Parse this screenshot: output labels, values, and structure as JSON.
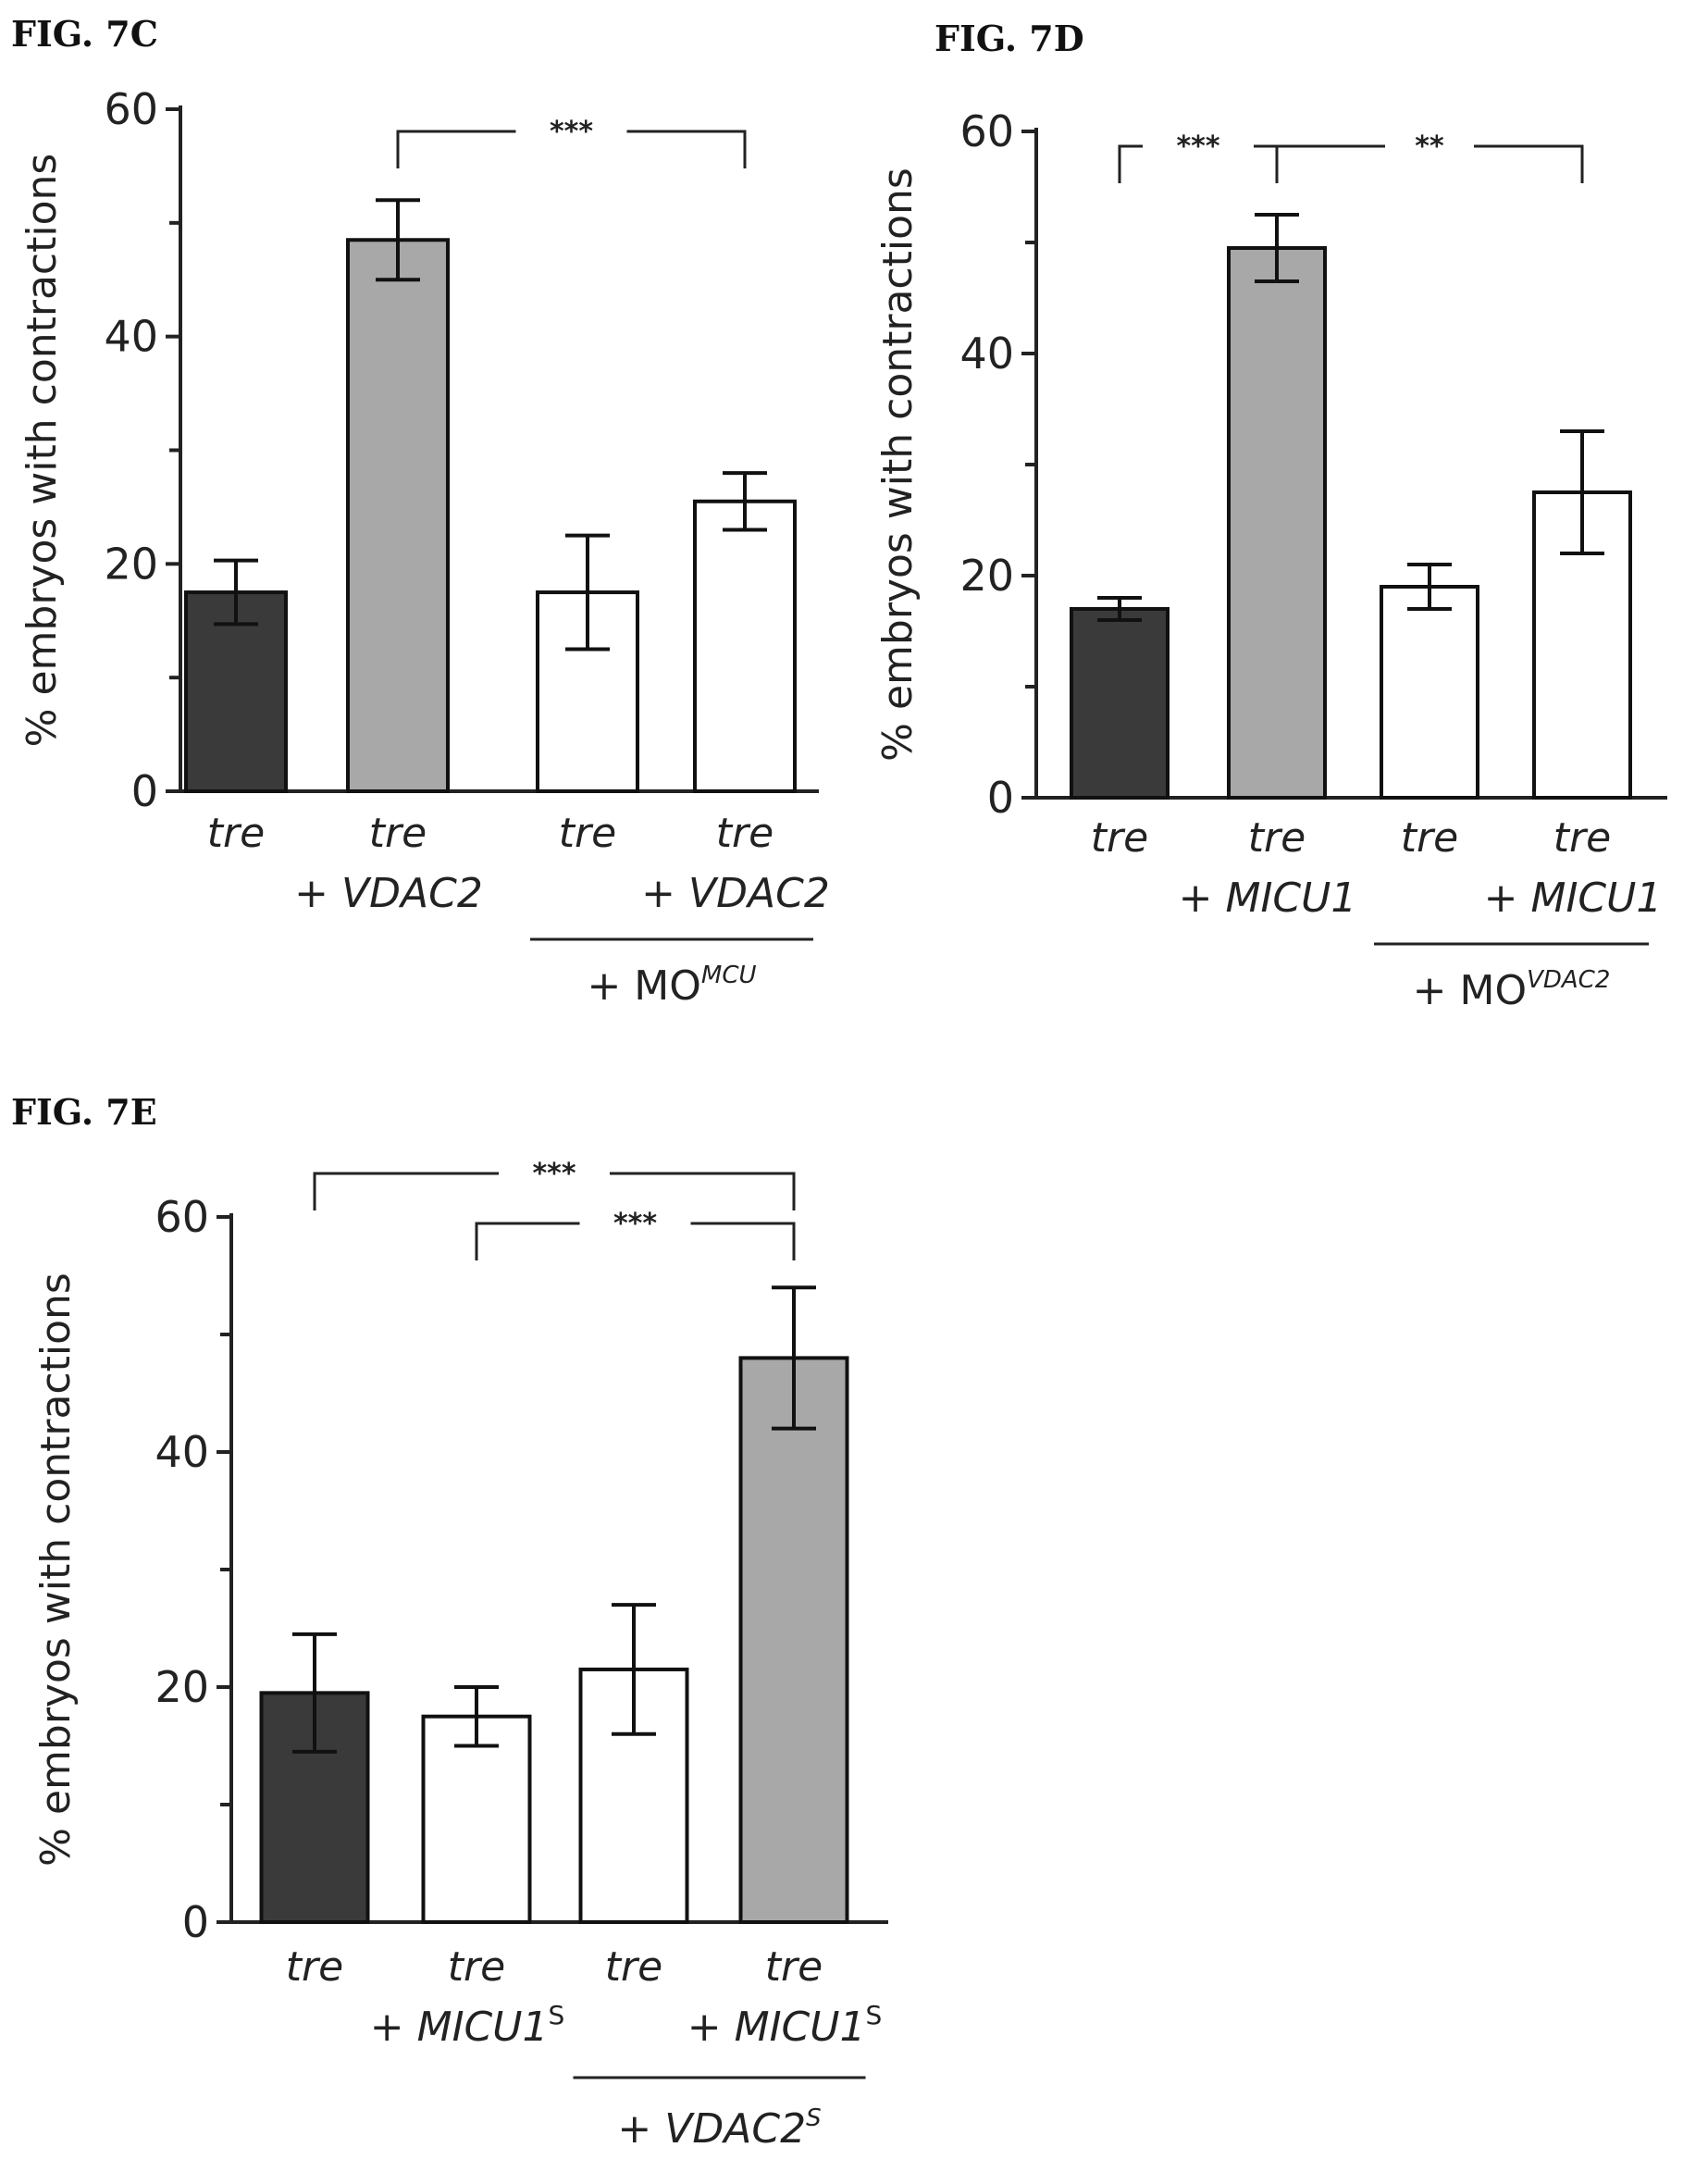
{
  "chart_data": [
    {
      "id": "panel-7c",
      "type": "bar",
      "title": "FIG. 7C",
      "ylabel": "% embryos with contractions",
      "ylim": [
        0,
        60
      ],
      "yticks": [
        0,
        20,
        40,
        60
      ],
      "categories": [
        {
          "line1": "tre",
          "line2": ""
        },
        {
          "line1": "tre",
          "line2": "+ VDAC2"
        },
        {
          "line1": "tre",
          "line2": ""
        },
        {
          "line1": "tre",
          "line2": "+ VDAC2"
        }
      ],
      "values": [
        17.5,
        48.5,
        17.5,
        25.5
      ],
      "errors": [
        2.8,
        3.5,
        5.0,
        2.5
      ],
      "fills": [
        "#3a3a3a",
        "#a8a8a8",
        "#ffffff",
        "#ffffff"
      ],
      "group": {
        "from": 2,
        "to": 3,
        "label": "+ MO",
        "sup": "MCU"
      },
      "brackets": [
        {
          "from": 1,
          "to": 3,
          "label": "***"
        }
      ]
    },
    {
      "id": "panel-7d",
      "type": "bar",
      "title": "FIG. 7D",
      "ylabel": "% embryos with contractions",
      "ylim": [
        0,
        60
      ],
      "yticks": [
        0,
        20,
        40,
        60
      ],
      "categories": [
        {
          "line1": "tre",
          "line2": ""
        },
        {
          "line1": "tre",
          "line2": "+ MICU1"
        },
        {
          "line1": "tre",
          "line2": ""
        },
        {
          "line1": "tre",
          "line2": "+ MICU1"
        }
      ],
      "values": [
        17,
        49.5,
        19,
        27.5
      ],
      "errors": [
        1.0,
        3.0,
        2.0,
        5.5
      ],
      "fills": [
        "#3a3a3a",
        "#a8a8a8",
        "#ffffff",
        "#ffffff"
      ],
      "group": {
        "from": 2,
        "to": 3,
        "label": "+ MO",
        "sup": "VDAC2"
      },
      "brackets": [
        {
          "from": 0,
          "to": 1,
          "label": "***"
        },
        {
          "from": 1,
          "to": 3,
          "label": "**"
        }
      ]
    },
    {
      "id": "panel-7e",
      "type": "bar",
      "title": "FIG. 7E",
      "ylabel": "% embryos with contractions",
      "ylim": [
        0,
        60
      ],
      "yticks": [
        0,
        20,
        40,
        60
      ],
      "categories": [
        {
          "line1": "tre",
          "line2": ""
        },
        {
          "line1": "tre",
          "line2": "+ MICU1",
          "sup2": "S"
        },
        {
          "line1": "tre",
          "line2": ""
        },
        {
          "line1": "tre",
          "line2": "+ MICU1",
          "sup2": "S"
        }
      ],
      "values": [
        19.5,
        17.5,
        21.5,
        48
      ],
      "errors": [
        5.0,
        2.5,
        5.5,
        6.0
      ],
      "fills": [
        "#3a3a3a",
        "#ffffff",
        "#ffffff",
        "#a8a8a8"
      ],
      "group": {
        "from": 2,
        "to": 3,
        "label": "+ VDAC2",
        "sup": "S"
      },
      "brackets": [
        {
          "from": 0,
          "to": 3,
          "label": "***"
        },
        {
          "from": 1,
          "to": 3,
          "label": "***"
        }
      ]
    }
  ]
}
